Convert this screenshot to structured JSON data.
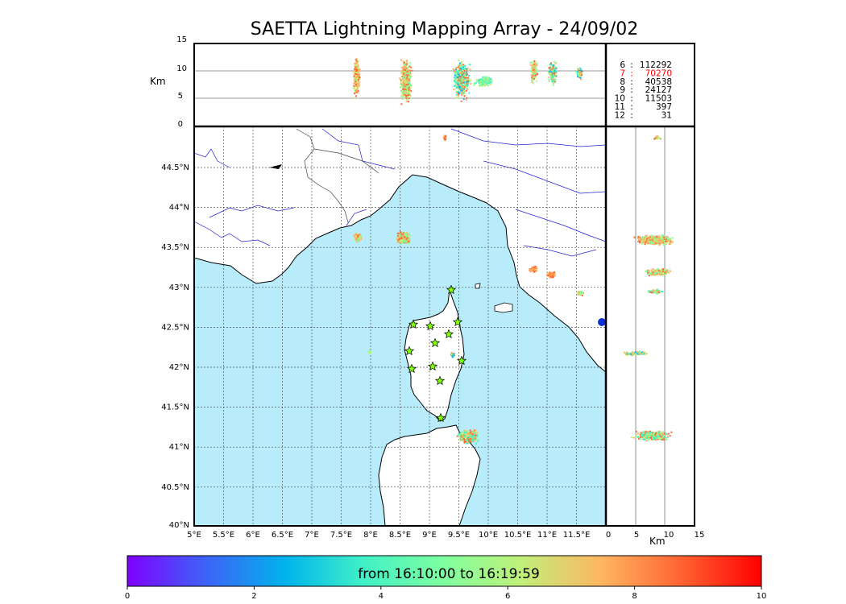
{
  "title": "SAETTA Lightning Mapping Array - 24/09/02",
  "altitude_unit": "Km",
  "top_panel": {
    "y_ticks": [
      "15",
      "10",
      "5",
      "0"
    ]
  },
  "right_panel": {
    "x_ticks": [
      "0",
      "5",
      "10",
      "15"
    ]
  },
  "map": {
    "lon_ticks": [
      "5°E",
      "5.5°E",
      "6°E",
      "6.5°E",
      "7°E",
      "7.5°E",
      "8°E",
      "8.5°E",
      "9°E",
      "9.5°E",
      "10°E",
      "10.5°E",
      "11°E",
      "11.5°E"
    ],
    "lat_ticks": [
      "44.5°N",
      "44°N",
      "43.5°N",
      "43°N",
      "42.5°N",
      "42°N",
      "41.5°N",
      "41°N",
      "40.5°N",
      "40°N"
    ],
    "colors": {
      "sea": "#b8ecfa",
      "land": "#ffffff",
      "coast": "#000000",
      "rivers": "#2222cc",
      "stations": "#7fff00"
    }
  },
  "source_counts": [
    {
      "label": "6",
      "value": "112292",
      "color": "#000000"
    },
    {
      "label": "7",
      "value": "70270",
      "color": "#ff0000"
    },
    {
      "label": "8",
      "value": "40538",
      "color": "#000000"
    },
    {
      "label": "9",
      "value": "24127",
      "color": "#000000"
    },
    {
      "label": "10",
      "value": "11503",
      "color": "#000000"
    },
    {
      "label": "11",
      "value": "397",
      "color": "#000000"
    },
    {
      "label": "12",
      "value": "31",
      "color": "#000000"
    }
  ],
  "colorbar": {
    "label": "from 16:10:00 to 16:19:59",
    "ticks": [
      "0",
      "2",
      "4",
      "6",
      "8",
      "10"
    ],
    "stops": [
      "#7f00ff",
      "#3f60f8",
      "#00b4eb",
      "#40f0c8",
      "#80ff9f",
      "#c0f07a",
      "#ffb461",
      "#ff6633",
      "#ff0000"
    ]
  }
}
